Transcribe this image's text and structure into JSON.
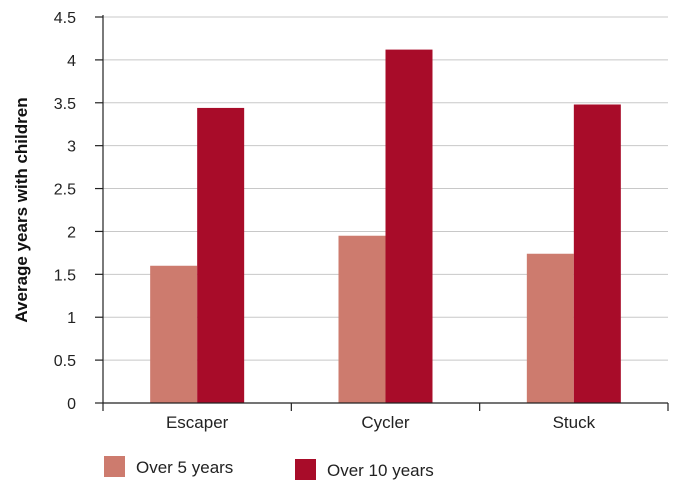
{
  "chart_data": {
    "type": "bar",
    "categories": [
      "Escaper",
      "Cycler",
      "Stuck"
    ],
    "series": [
      {
        "name": "Over 5 years",
        "values": [
          1.6,
          1.95,
          1.74
        ],
        "color": "#cd7b6e"
      },
      {
        "name": "Over 10 years",
        "values": [
          3.44,
          4.12,
          3.48
        ],
        "color": "#a80c29"
      }
    ],
    "title": "",
    "xlabel": "",
    "ylabel": "Average years with children",
    "ylim": [
      0,
      4.5
    ],
    "yticks": [
      "0",
      "0.5",
      "1",
      "1.5",
      "2",
      "2.5",
      "3",
      "3.5",
      "4",
      "4.5"
    ],
    "grid": true,
    "legend_position": "bottom"
  }
}
